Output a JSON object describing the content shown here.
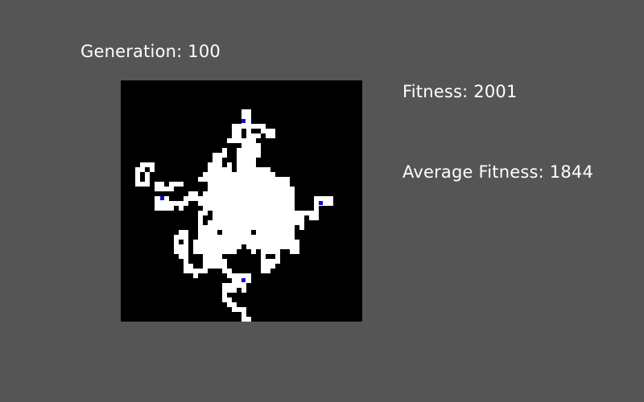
{
  "stats": {
    "generation": "Generation: 100",
    "fitness": "Fitness: 2001",
    "average_fitness": "Average Fitness: 1844"
  },
  "colors": {
    "background": "#555555",
    "grid_background": "#000000",
    "path": "#ffffff",
    "marker": "#1010d0"
  }
}
